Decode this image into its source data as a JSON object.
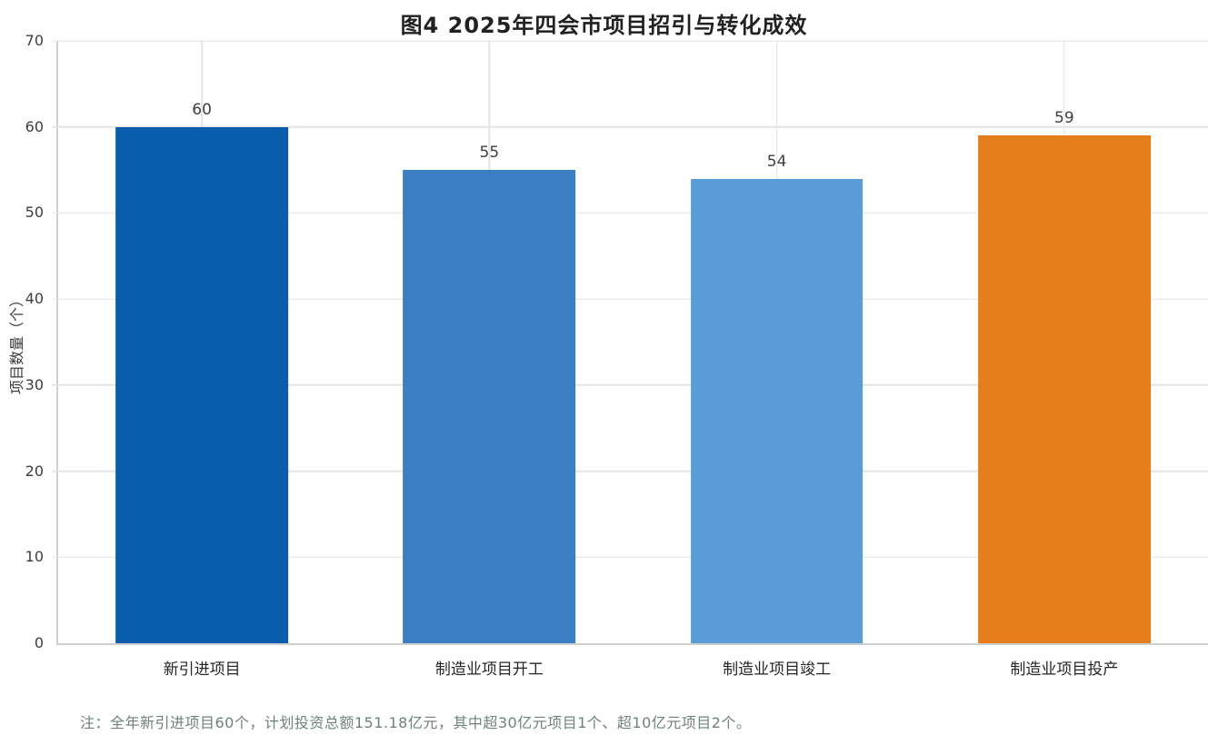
{
  "chart_data": {
    "type": "bar",
    "title": "图4 2025年四会市项目招引与转化成效",
    "categories": [
      "新引进项目",
      "制造业项目开工",
      "制造业项目竣工",
      "制造业项目投产"
    ],
    "values": [
      60,
      55,
      54,
      59
    ],
    "bar_colors": [
      "#0a5cad",
      "#3b7fc2",
      "#599cd6",
      "#e67e1d"
    ],
    "xlabel": "",
    "ylabel": "项目数量（个）",
    "ylim": [
      0,
      70
    ],
    "ytick_step": 10,
    "yticks": [
      0,
      10,
      20,
      30,
      40,
      50,
      60,
      70
    ],
    "grid": true,
    "legend_position": "none",
    "note": "注：全年新引进项目60个，计划投资总额151.18亿元，其中超30亿元项目1个、超10亿元项目2个。"
  },
  "colors": {
    "background": "#ffffff",
    "grid_line": "#e4e4e4",
    "axis_line": "#cfcfcf",
    "title_text": "#212121",
    "tick_text": "#3d3d3d",
    "value_text": "#3f3f3f",
    "note_text": "#6f807d"
  }
}
